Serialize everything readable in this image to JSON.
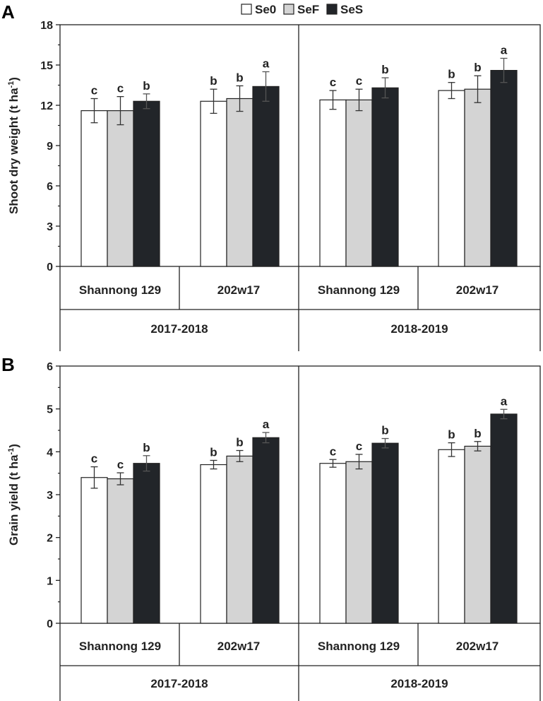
{
  "legend": [
    {
      "name": "Se0",
      "color": "#ffffff"
    },
    {
      "name": "SeF",
      "color": "#d4d4d4"
    },
    {
      "name": "SeS",
      "color": "#222529"
    }
  ],
  "chart_data": [
    {
      "type": "bar",
      "panel": "A",
      "ylabel_main": "Shoot dry weight (t ha",
      "ylabel_sup": "-1",
      "ylabel_end": ")",
      "ylim": [
        0,
        18
      ],
      "yticks": [
        0,
        3,
        6,
        9,
        12,
        15,
        18
      ],
      "groups": [
        {
          "year": "2017-2018",
          "cultivars": [
            "Shannong 129",
            "202w17"
          ]
        },
        {
          "year": "2018-2019",
          "cultivars": [
            "Shannong 129",
            "202w17"
          ]
        }
      ],
      "categories": [
        "Shannong 129 (2017-2018)",
        "202w17 (2017-2018)",
        "Shannong 129 (2018-2019)",
        "202w17 (2018-2019)"
      ],
      "series": [
        {
          "name": "Se0",
          "values": [
            11.6,
            12.3,
            12.4,
            13.1
          ],
          "errors": [
            0.9,
            0.9,
            0.7,
            0.6
          ],
          "letters": [
            "c",
            "b",
            "c",
            "b"
          ]
        },
        {
          "name": "SeF",
          "values": [
            11.6,
            12.5,
            12.4,
            13.2
          ],
          "errors": [
            1.05,
            0.95,
            0.8,
            1.0
          ],
          "letters": [
            "c",
            "b",
            "c",
            "b"
          ]
        },
        {
          "name": "SeS",
          "values": [
            12.3,
            13.4,
            13.3,
            14.6
          ],
          "errors": [
            0.55,
            1.1,
            0.75,
            0.9
          ],
          "letters": [
            "b",
            "a",
            "b",
            "a"
          ]
        }
      ]
    },
    {
      "type": "bar",
      "panel": "B",
      "ylabel_main": "Grain yield (t ha",
      "ylabel_sup": "-1",
      "ylabel_end": ")",
      "ylim": [
        0,
        6
      ],
      "yticks": [
        0,
        1,
        2,
        3,
        4,
        5,
        6
      ],
      "groups": [
        {
          "year": "2017-2018",
          "cultivars": [
            "Shannong 129",
            "202w17"
          ]
        },
        {
          "year": "2018-2019",
          "cultivars": [
            "Shannong 129",
            "202w17"
          ]
        }
      ],
      "categories": [
        "Shannong 129 (2017-2018)",
        "202w17 (2017-2018)",
        "Shannong 129 (2018-2019)",
        "202w17 (2018-2019)"
      ],
      "series": [
        {
          "name": "Se0",
          "values": [
            3.4,
            3.7,
            3.73,
            4.05
          ],
          "errors": [
            0.25,
            0.1,
            0.09,
            0.16
          ],
          "letters": [
            "c",
            "b",
            "c",
            "b"
          ]
        },
        {
          "name": "SeF",
          "values": [
            3.37,
            3.9,
            3.77,
            4.13
          ],
          "errors": [
            0.14,
            0.13,
            0.17,
            0.11
          ],
          "letters": [
            "c",
            "b",
            "c",
            "b"
          ]
        },
        {
          "name": "SeS",
          "values": [
            3.73,
            4.33,
            4.2,
            4.88
          ],
          "errors": [
            0.18,
            0.12,
            0.11,
            0.11
          ],
          "letters": [
            "b",
            "a",
            "b",
            "a"
          ]
        }
      ]
    }
  ]
}
